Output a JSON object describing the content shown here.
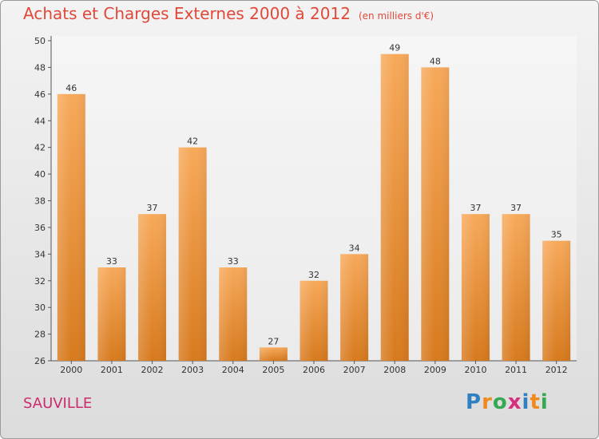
{
  "header": {
    "title": "Achats et Charges Externes 2000 à 2012",
    "unit": "(en milliers d'€)"
  },
  "footer": {
    "town": "SAUVILLE"
  },
  "logo": {
    "letters": [
      "P",
      "r",
      "o",
      "x",
      "i",
      "t",
      "i"
    ],
    "colors": [
      "#2f7fc1",
      "#f18a1c",
      "#34a853",
      "#d62f7d",
      "#2f7fc1",
      "#f18a1c",
      "#34a853"
    ]
  },
  "colors": {
    "bar_top": "#f7a95a",
    "bar_bottom": "#d77a1e",
    "title": "#e0483a",
    "town": "#cc2b6e"
  },
  "chart_data": {
    "type": "bar",
    "title": "Achats et Charges Externes 2000 à 2012",
    "xlabel": "",
    "ylabel": "",
    "categories": [
      "2000",
      "2001",
      "2002",
      "2003",
      "2004",
      "2005",
      "2006",
      "2007",
      "2008",
      "2009",
      "2010",
      "2011",
      "2012"
    ],
    "values": [
      46,
      33,
      37,
      42,
      33,
      27,
      32,
      34,
      49,
      48,
      37,
      37,
      35
    ],
    "ylim": [
      26,
      50
    ],
    "yticks": [
      26,
      28,
      30,
      32,
      34,
      36,
      38,
      40,
      42,
      44,
      46,
      48,
      50
    ],
    "grid": false,
    "legend": "none"
  }
}
